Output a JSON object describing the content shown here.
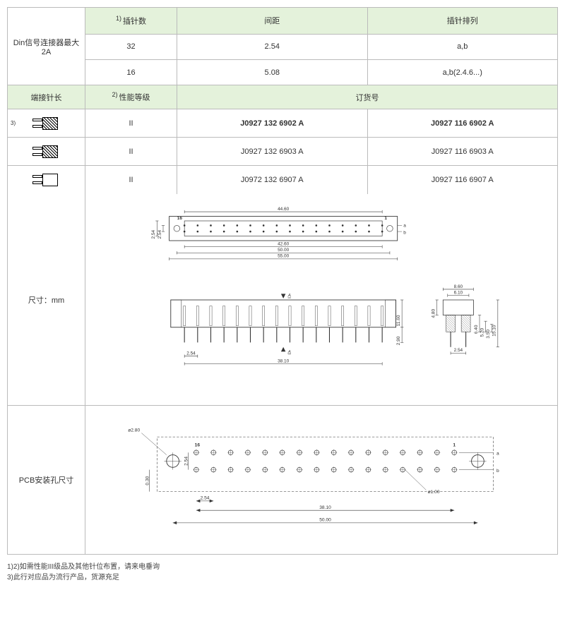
{
  "colors": {
    "header_bg": "#e4f2db",
    "border": "#bbbbbb",
    "text": "#333333"
  },
  "table1": {
    "rowLabel": "Din信号连接器最大2A",
    "headers": {
      "pins": "插针数",
      "pitch": "间距",
      "arrangement": "插针排列"
    },
    "header_sup": "1)",
    "rows": [
      {
        "pins": "32",
        "pitch": "2.54",
        "arr": "a,b"
      },
      {
        "pins": "16",
        "pitch": "5.08",
        "arr": "a,b(2.4.6...)"
      }
    ]
  },
  "table2": {
    "h1": "端接针长",
    "h2": "性能等级",
    "h2_sup": "2)",
    "h3": "订货号",
    "row_sup": "3)",
    "rows": [
      {
        "icon": "hatch",
        "perf": "II",
        "p1": "J0927 132 6902 A",
        "p2": "J0927 116 6902 A",
        "bold": true
      },
      {
        "icon": "half",
        "perf": "II",
        "p1": "J0927 132 6903 A",
        "p2": "J0927 116 6903 A",
        "bold": false
      },
      {
        "icon": "white",
        "perf": "II",
        "p1": "J0972 132 6907 A",
        "p2": "J0927 116 6907 A",
        "bold": false
      }
    ]
  },
  "dims": {
    "label": "尺寸：mm",
    "top": {
      "overall": "55.00",
      "d2": "50.00",
      "d3": "42.60",
      "d4": "44.60",
      "row_pitch": "2.54",
      "n_left": "16",
      "n_right": "1",
      "row_a": "a",
      "row_b": "b",
      "pins": 16
    },
    "front": {
      "pin_pitch": "2.54",
      "span": "38.10",
      "height": "11.60",
      "tail": "2.90",
      "arrow": "A",
      "pins": 16
    },
    "side": {
      "w": "8.60",
      "w2": "6.10",
      "h1": "4.80",
      "h2": "6.40",
      "h3": "5.20",
      "h4": "3.50",
      "h5": "15.10",
      "pitch": "2.54"
    }
  },
  "pcb": {
    "label": "PCB安装孔尺寸",
    "hole_dia": "ø2.80",
    "pin_hole": "ø1.00",
    "row_pitch": "2.54",
    "col_pitch": "2.54",
    "span": "38.10",
    "overall": "50.00",
    "edge": "0.30",
    "n_left": "16",
    "n_right": "1",
    "row_a": "a",
    "row_b": "b",
    "pins": 16
  },
  "footnotes": {
    "l1": "1)2)如需性能III级品及其他针位布置，请来电垂询",
    "l2": "3)此行对应品为流行产品，货源充足"
  }
}
